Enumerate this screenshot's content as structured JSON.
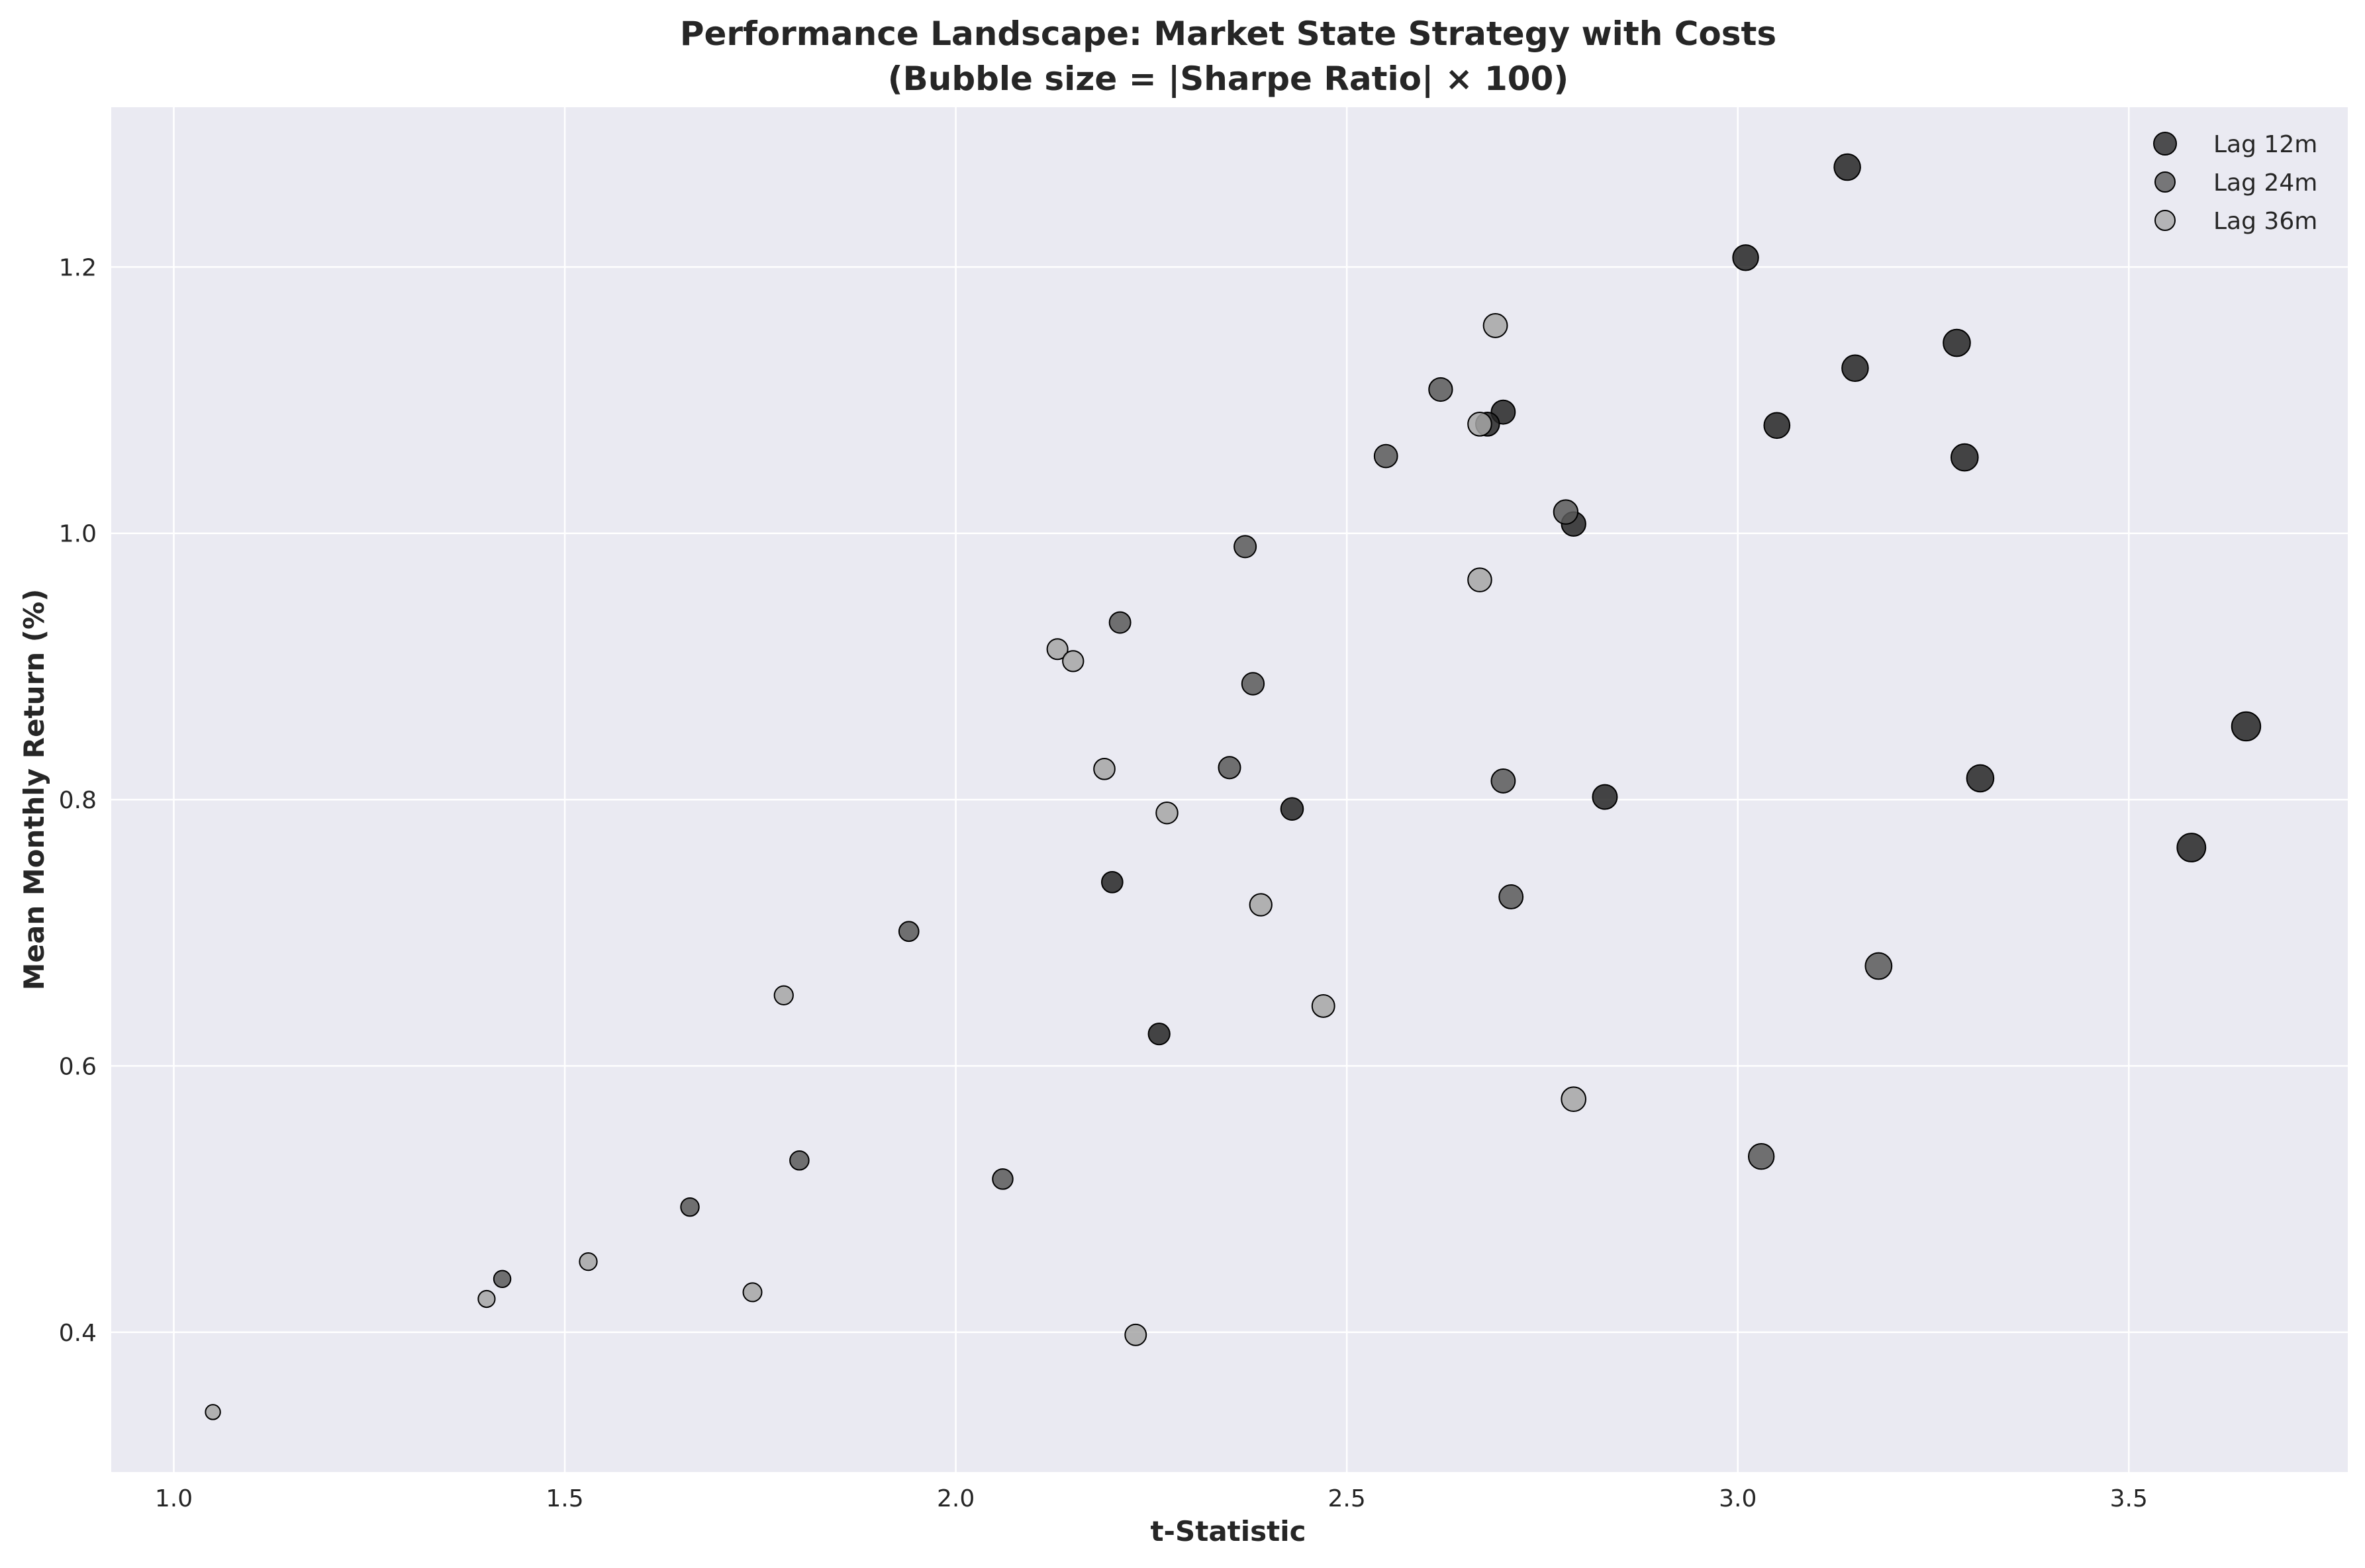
{
  "chart_data": {
    "type": "scatter",
    "title": "Performance Landscape: Market State Strategy with Costs",
    "subtitle": "(Bubble size = |Sharpe Ratio| × 100)",
    "xlabel": "t-Statistic",
    "ylabel": "Mean Monthly Return (%)",
    "xlim": [
      0.92,
      3.78
    ],
    "ylim": [
      0.295,
      1.32
    ],
    "xticks": [
      "1.0",
      "1.5",
      "2.0",
      "2.5",
      "3.0",
      "3.5"
    ],
    "yticks": [
      "0.4",
      "0.6",
      "0.8",
      "1.0",
      "1.2"
    ],
    "grid": true,
    "legend_position": "top-right",
    "colors": {
      "background": "#eaeaf2",
      "grid": "#ffffff",
      "Lag 12m": "#262626",
      "Lag 24m": "#595959",
      "Lag 36m": "#a6a6a6"
    },
    "series": [
      {
        "name": "Lag 12m",
        "points": [
          {
            "x": 3.14,
            "y": 1.275,
            "sharpe": 0.91
          },
          {
            "x": 3.01,
            "y": 1.207,
            "sharpe": 0.87
          },
          {
            "x": 3.28,
            "y": 1.143,
            "sharpe": 0.95
          },
          {
            "x": 3.15,
            "y": 1.124,
            "sharpe": 0.91
          },
          {
            "x": 2.7,
            "y": 1.091,
            "sharpe": 0.78
          },
          {
            "x": 2.68,
            "y": 1.082,
            "sharpe": 0.77
          },
          {
            "x": 3.05,
            "y": 1.081,
            "sharpe": 0.88
          },
          {
            "x": 3.29,
            "y": 1.057,
            "sharpe": 0.95
          },
          {
            "x": 2.79,
            "y": 1.007,
            "sharpe": 0.8
          },
          {
            "x": 3.65,
            "y": 0.855,
            "sharpe": 1.05
          },
          {
            "x": 3.31,
            "y": 0.816,
            "sharpe": 0.95
          },
          {
            "x": 2.83,
            "y": 0.802,
            "sharpe": 0.82
          },
          {
            "x": 2.43,
            "y": 0.793,
            "sharpe": 0.7
          },
          {
            "x": 3.58,
            "y": 0.764,
            "sharpe": 1.03
          },
          {
            "x": 2.2,
            "y": 0.738,
            "sharpe": 0.63
          },
          {
            "x": 2.26,
            "y": 0.624,
            "sharpe": 0.65
          }
        ]
      },
      {
        "name": "Lag 24m",
        "points": [
          {
            "x": 2.62,
            "y": 1.108,
            "sharpe": 0.76
          },
          {
            "x": 2.55,
            "y": 1.058,
            "sharpe": 0.74
          },
          {
            "x": 2.78,
            "y": 1.016,
            "sharpe": 0.8
          },
          {
            "x": 2.37,
            "y": 0.99,
            "sharpe": 0.68
          },
          {
            "x": 2.21,
            "y": 0.933,
            "sharpe": 0.64
          },
          {
            "x": 2.38,
            "y": 0.887,
            "sharpe": 0.69
          },
          {
            "x": 2.35,
            "y": 0.824,
            "sharpe": 0.68
          },
          {
            "x": 2.7,
            "y": 0.814,
            "sharpe": 0.78
          },
          {
            "x": 2.71,
            "y": 0.727,
            "sharpe": 0.78
          },
          {
            "x": 1.94,
            "y": 0.701,
            "sharpe": 0.56
          },
          {
            "x": 3.18,
            "y": 0.675,
            "sharpe": 0.92
          },
          {
            "x": 3.03,
            "y": 0.532,
            "sharpe": 0.87
          },
          {
            "x": 1.8,
            "y": 0.529,
            "sharpe": 0.52
          },
          {
            "x": 2.06,
            "y": 0.515,
            "sharpe": 0.59
          },
          {
            "x": 1.66,
            "y": 0.494,
            "sharpe": 0.48
          },
          {
            "x": 1.42,
            "y": 0.44,
            "sharpe": 0.41
          }
        ]
      },
      {
        "name": "Lag 36m",
        "points": [
          {
            "x": 2.69,
            "y": 1.156,
            "sharpe": 0.78
          },
          {
            "x": 2.67,
            "y": 1.082,
            "sharpe": 0.77
          },
          {
            "x": 2.67,
            "y": 0.965,
            "sharpe": 0.77
          },
          {
            "x": 2.13,
            "y": 0.913,
            "sharpe": 0.61
          },
          {
            "x": 2.15,
            "y": 0.904,
            "sharpe": 0.62
          },
          {
            "x": 2.19,
            "y": 0.823,
            "sharpe": 0.63
          },
          {
            "x": 2.27,
            "y": 0.79,
            "sharpe": 0.66
          },
          {
            "x": 2.39,
            "y": 0.721,
            "sharpe": 0.69
          },
          {
            "x": 1.78,
            "y": 0.653,
            "sharpe": 0.51
          },
          {
            "x": 2.47,
            "y": 0.645,
            "sharpe": 0.71
          },
          {
            "x": 2.79,
            "y": 0.575,
            "sharpe": 0.81
          },
          {
            "x": 1.53,
            "y": 0.453,
            "sharpe": 0.44
          },
          {
            "x": 1.74,
            "y": 0.43,
            "sharpe": 0.5
          },
          {
            "x": 1.4,
            "y": 0.425,
            "sharpe": 0.4
          },
          {
            "x": 2.23,
            "y": 0.398,
            "sharpe": 0.64
          },
          {
            "x": 1.05,
            "y": 0.34,
            "sharpe": 0.3
          }
        ]
      }
    ]
  }
}
